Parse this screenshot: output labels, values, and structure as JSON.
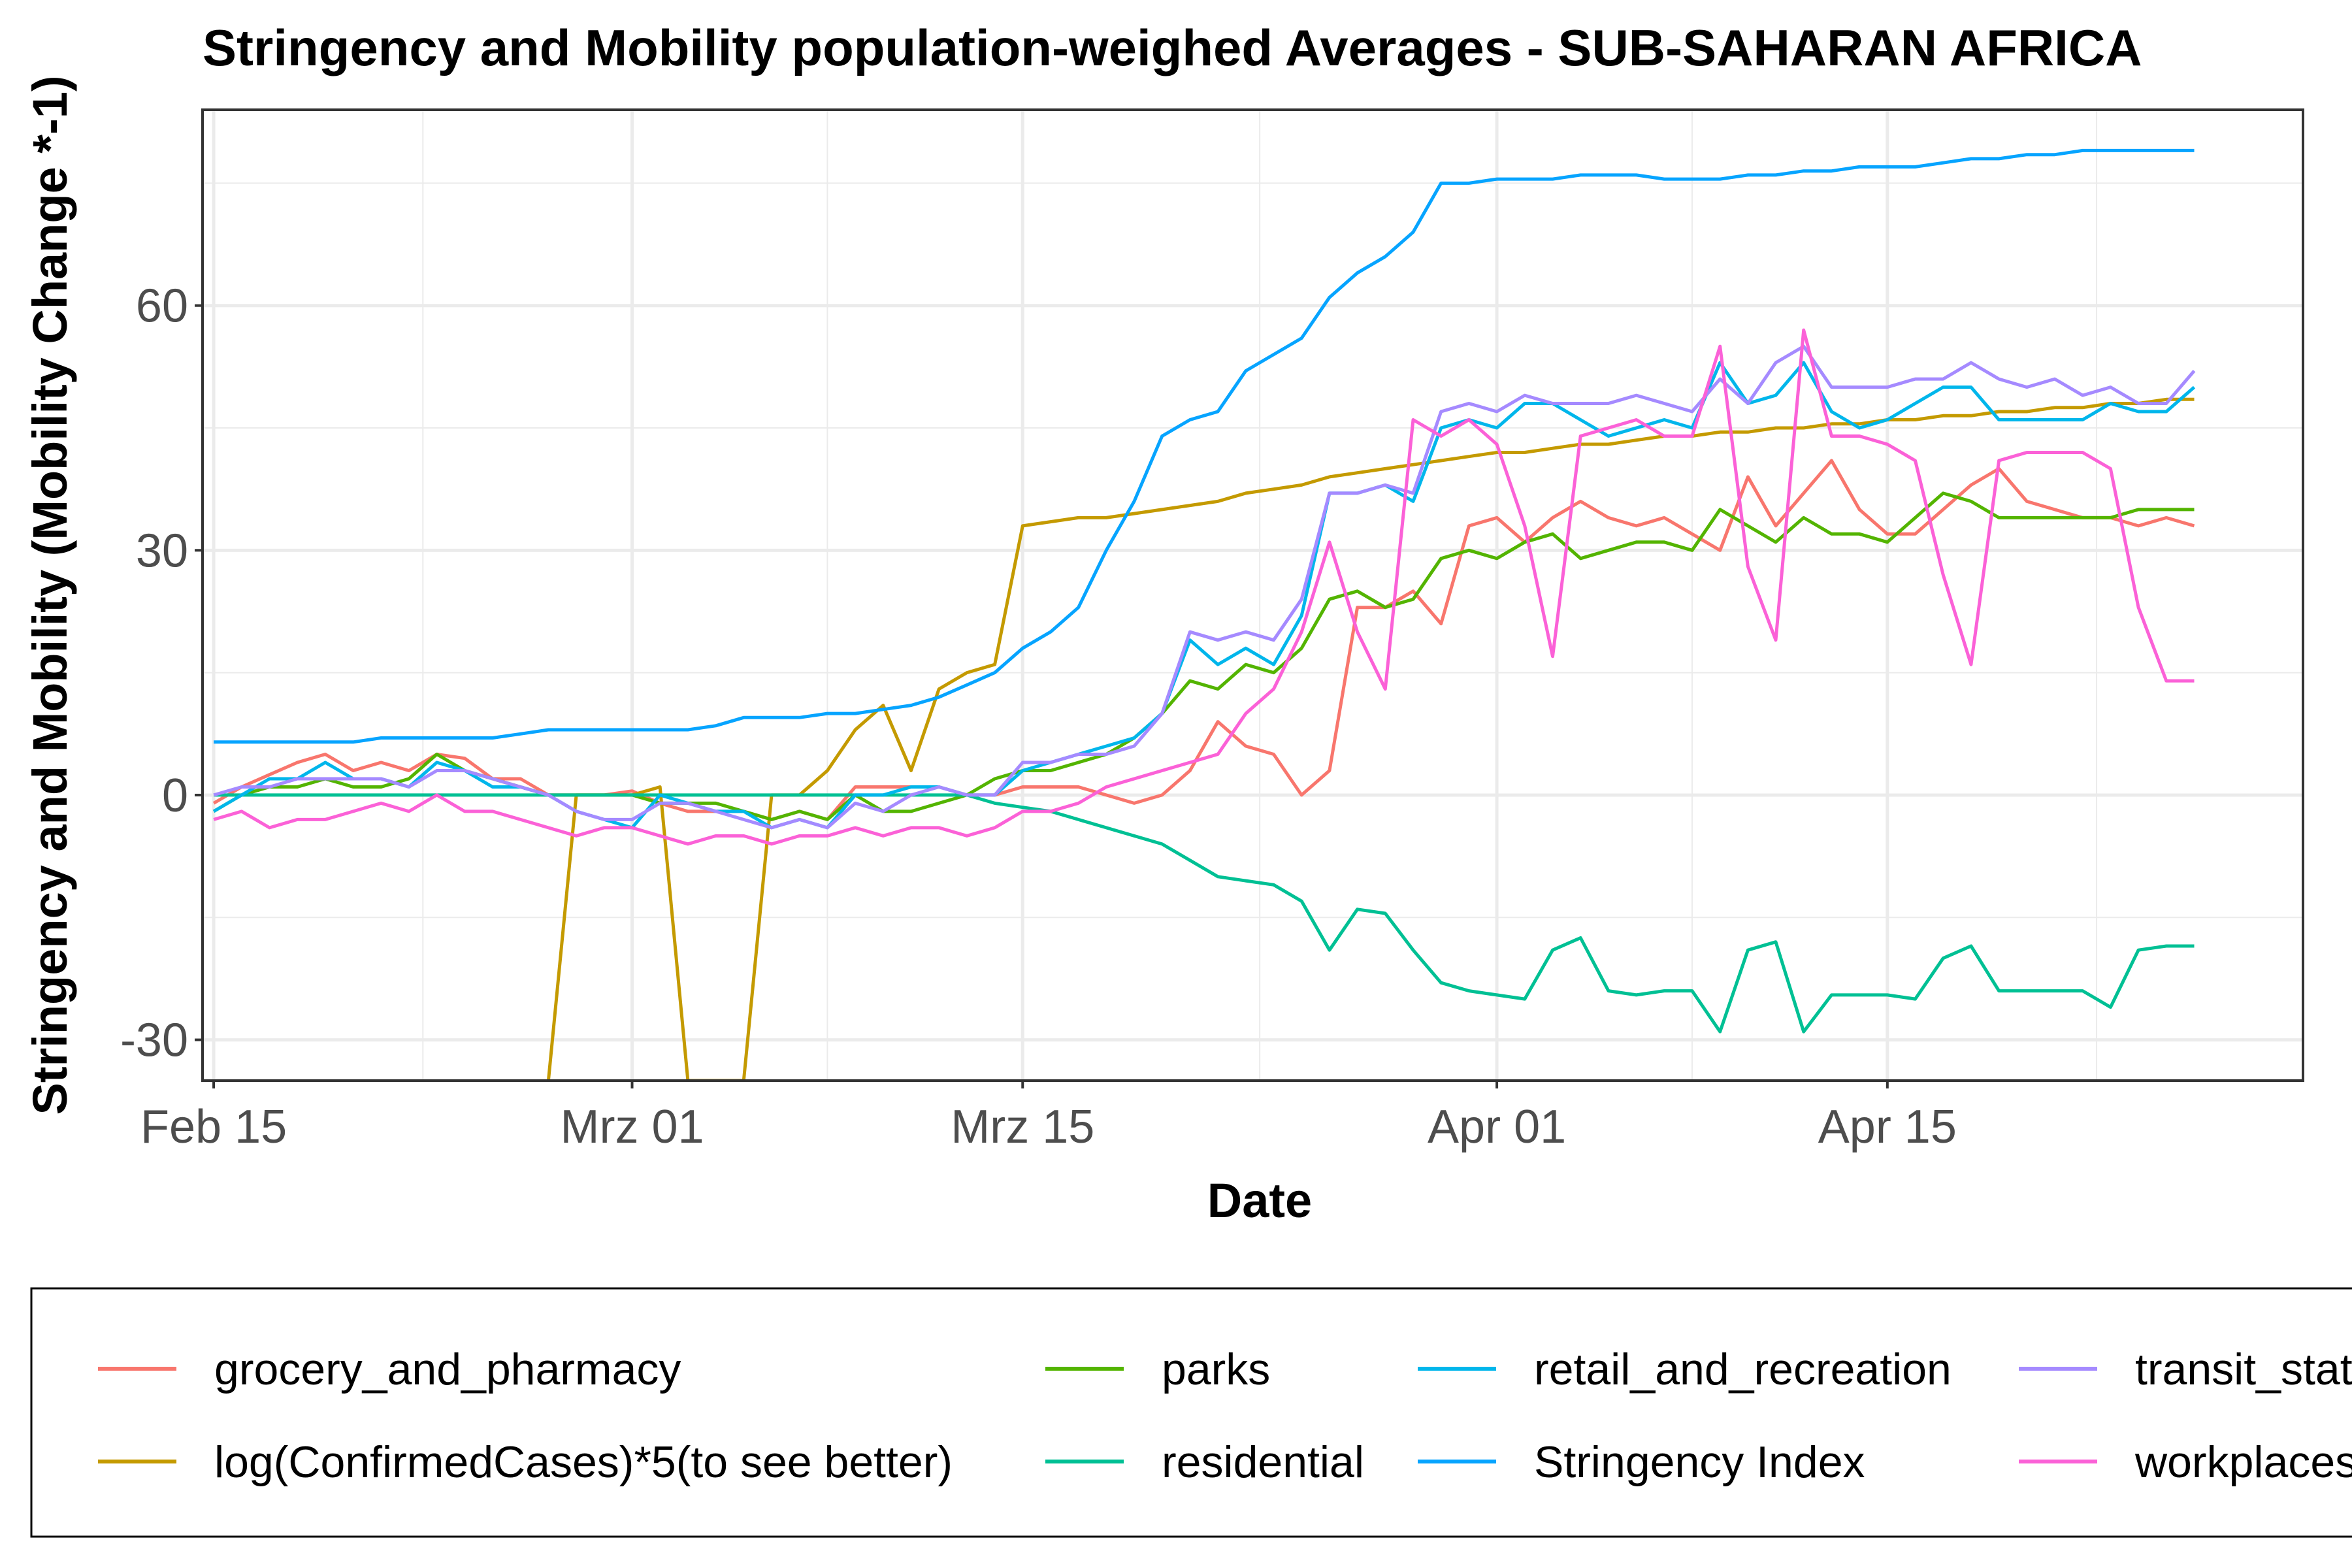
{
  "chart_data": {
    "type": "line",
    "title": "Stringency and Mobility population-weighed Averages - SUB-SAHARAN AFRICA",
    "xlabel": "Date",
    "ylabel": "Stringency and Mobility (Mobility Change *-1)",
    "x_ticks": [
      "Feb 15",
      "Mrz 01",
      "Mrz 15",
      "Apr 01",
      "Apr 15"
    ],
    "y_ticks": [
      -30,
      0,
      30,
      60
    ],
    "xlim": [
      "2020-02-15",
      "2020-04-26"
    ],
    "ylim": [
      -35,
      84
    ],
    "grid": true,
    "legend_position": "bottom",
    "x": [
      "2020-02-15",
      "2020-02-16",
      "2020-02-17",
      "2020-02-18",
      "2020-02-19",
      "2020-02-20",
      "2020-02-21",
      "2020-02-22",
      "2020-02-23",
      "2020-02-24",
      "2020-02-25",
      "2020-02-26",
      "2020-02-27",
      "2020-02-28",
      "2020-02-29",
      "2020-03-01",
      "2020-03-02",
      "2020-03-03",
      "2020-03-04",
      "2020-03-05",
      "2020-03-06",
      "2020-03-07",
      "2020-03-08",
      "2020-03-09",
      "2020-03-10",
      "2020-03-11",
      "2020-03-12",
      "2020-03-13",
      "2020-03-14",
      "2020-03-15",
      "2020-03-16",
      "2020-03-17",
      "2020-03-18",
      "2020-03-19",
      "2020-03-20",
      "2020-03-21",
      "2020-03-22",
      "2020-03-23",
      "2020-03-24",
      "2020-03-25",
      "2020-03-26",
      "2020-03-27",
      "2020-03-28",
      "2020-03-29",
      "2020-03-30",
      "2020-03-31",
      "2020-04-01",
      "2020-04-02",
      "2020-04-03",
      "2020-04-04",
      "2020-04-05",
      "2020-04-06",
      "2020-04-07",
      "2020-04-08",
      "2020-04-09",
      "2020-04-10",
      "2020-04-11",
      "2020-04-12",
      "2020-04-13",
      "2020-04-14",
      "2020-04-15",
      "2020-04-16",
      "2020-04-17",
      "2020-04-18",
      "2020-04-19",
      "2020-04-20",
      "2020-04-21",
      "2020-04-22",
      "2020-04-23",
      "2020-04-24",
      "2020-04-25",
      "2020-04-26"
    ],
    "series": [
      {
        "name": "grocery_and_pharmacy",
        "color": "#F8766D",
        "values": [
          -1,
          1,
          2.5,
          4,
          5,
          3,
          4,
          3,
          5,
          4.5,
          2,
          2,
          0,
          0,
          0,
          0.5,
          -1,
          -2,
          -2,
          -2,
          -3,
          -2,
          -3,
          1,
          1,
          1,
          1,
          0,
          0,
          1,
          1,
          1,
          0,
          -1,
          0,
          3,
          9,
          6,
          5,
          0,
          3,
          23,
          23,
          25,
          21,
          33,
          34,
          31,
          34,
          36,
          34,
          33,
          34,
          32,
          30,
          39,
          33,
          37,
          41,
          35,
          32,
          32,
          35,
          38,
          40,
          36,
          35,
          34,
          34,
          33,
          34,
          33
        ]
      },
      {
        "name": "log(ConfirmedCases)*5(to see better)",
        "color": "#C49A00",
        "values": [
          null,
          null,
          null,
          null,
          null,
          null,
          null,
          null,
          null,
          null,
          null,
          null,
          -35,
          0,
          0,
          0,
          1,
          -35,
          -35,
          -35,
          0,
          0,
          3,
          8,
          11,
          3,
          13,
          15,
          16,
          33,
          33.5,
          34,
          34,
          34.5,
          35,
          35.5,
          36,
          37,
          37.5,
          38,
          39,
          39.5,
          40,
          40.5,
          41,
          41.5,
          42,
          42,
          42.5,
          43,
          43,
          43.5,
          44,
          44,
          44.5,
          44.5,
          45,
          45,
          45.5,
          45.5,
          46,
          46,
          46.5,
          46.5,
          47,
          47,
          47.5,
          47.5,
          48,
          48,
          48.5,
          48.5
        ]
      },
      {
        "name": "parks",
        "color": "#53B400",
        "values": [
          -2,
          0,
          1,
          1,
          2,
          1,
          1,
          2,
          5,
          3,
          2,
          1,
          0,
          0,
          0,
          0,
          -1,
          -1,
          -1,
          -2,
          -3,
          -2,
          -3,
          0,
          -2,
          -2,
          -1,
          0,
          2,
          3,
          3,
          4,
          5,
          7,
          10,
          14,
          13,
          16,
          15,
          18,
          24,
          25,
          23,
          24,
          29,
          30,
          29,
          31,
          32,
          29,
          30,
          31,
          31,
          30,
          35,
          33,
          31,
          34,
          32,
          32,
          31,
          34,
          37,
          36,
          34,
          34,
          34,
          34,
          34,
          35,
          35,
          35
        ]
      },
      {
        "name": "residential",
        "color": "#00C094",
        "values": [
          0,
          0,
          0,
          0,
          0,
          0,
          0,
          0,
          0,
          0,
          0,
          0,
          0,
          0,
          0,
          0,
          0,
          0,
          0,
          0,
          0,
          0,
          0,
          0,
          0,
          0,
          0,
          0,
          -1,
          -1.5,
          -2,
          -3,
          -4,
          -5,
          -6,
          -8,
          -10,
          -10.5,
          -11,
          -13,
          -19,
          -14,
          -14.5,
          -19,
          -23,
          -24,
          -24.5,
          -25,
          -19,
          -17.5,
          -24,
          -24.5,
          -24,
          -24,
          -29,
          -19,
          -18,
          -29,
          -24.5,
          -24.5,
          -24.5,
          -25,
          -20,
          -18.5,
          -24,
          -24,
          -24,
          -24,
          -26,
          -19,
          -18.5,
          -18.5
        ]
      },
      {
        "name": "retail_and_recreation",
        "color": "#00B6EB",
        "values": [
          -2,
          0,
          2,
          2,
          4,
          2,
          2,
          1,
          4,
          3,
          1,
          1,
          0,
          -2,
          -3,
          -4,
          0,
          -1,
          -2,
          -2,
          -4,
          -3,
          -4,
          0,
          0,
          1,
          1,
          0,
          0,
          3,
          4,
          5,
          6,
          7,
          10,
          19,
          16,
          18,
          16,
          22,
          37,
          37,
          38,
          36,
          45,
          46,
          45,
          48,
          48,
          46,
          44,
          45,
          46,
          45,
          53,
          48,
          49,
          53,
          47,
          45,
          46,
          48,
          50,
          50,
          46,
          46,
          46,
          46,
          48,
          47,
          47,
          50
        ]
      },
      {
        "name": "Stringency Index",
        "color": "#06A4FF",
        "values": [
          6.5,
          6.5,
          6.5,
          6.5,
          6.5,
          6.5,
          7,
          7,
          7,
          7,
          7,
          7.5,
          8,
          8,
          8,
          8,
          8,
          8,
          8.5,
          9.5,
          9.5,
          9.5,
          10,
          10,
          10.5,
          11,
          12,
          13.5,
          15,
          18,
          20,
          23,
          30,
          36,
          44,
          46,
          47,
          52,
          54,
          56,
          61,
          64,
          66,
          69,
          75,
          75,
          75.5,
          75.5,
          75.5,
          76,
          76,
          76,
          75.5,
          75.5,
          75.5,
          76,
          76,
          76.5,
          76.5,
          77,
          77,
          77,
          77.5,
          78,
          78,
          78.5,
          78.5,
          79,
          79,
          79,
          79,
          79
        ]
      },
      {
        "name": "transit_stations",
        "color": "#A58AFF",
        "values": [
          0,
          1,
          1,
          2,
          2,
          2,
          2,
          1,
          3,
          3,
          2,
          1,
          0,
          -2,
          -3,
          -3,
          -1,
          -1,
          -2,
          -3,
          -4,
          -3,
          -4,
          -1,
          -2,
          0,
          1,
          0,
          0,
          4,
          4,
          5,
          5,
          6,
          10,
          20,
          19,
          20,
          19,
          24,
          37,
          37,
          38,
          37,
          47,
          48,
          47,
          49,
          48,
          48,
          48,
          49,
          48,
          47,
          51,
          48,
          53,
          55,
          50,
          50,
          50,
          51,
          51,
          53,
          51,
          50,
          51,
          49,
          50,
          48,
          48,
          52
        ]
      },
      {
        "name": "workplaces",
        "color": "#FB61D7",
        "values": [
          -3,
          -2,
          -4,
          -3,
          -3,
          -2,
          -1,
          -2,
          0,
          -2,
          -2,
          -3,
          -4,
          -5,
          -4,
          -4,
          -5,
          -6,
          -5,
          -5,
          -6,
          -5,
          -5,
          -4,
          -5,
          -4,
          -4,
          -5,
          -4,
          -2,
          -2,
          -1,
          1,
          2,
          3,
          4,
          5,
          10,
          13,
          20,
          31,
          20,
          13,
          46,
          44,
          46,
          43,
          33,
          17,
          44,
          45,
          46,
          44,
          44,
          55,
          28,
          19,
          57,
          44,
          44,
          43,
          41,
          27,
          16,
          41,
          42,
          42,
          42,
          40,
          23,
          14,
          14
        ]
      }
    ]
  }
}
